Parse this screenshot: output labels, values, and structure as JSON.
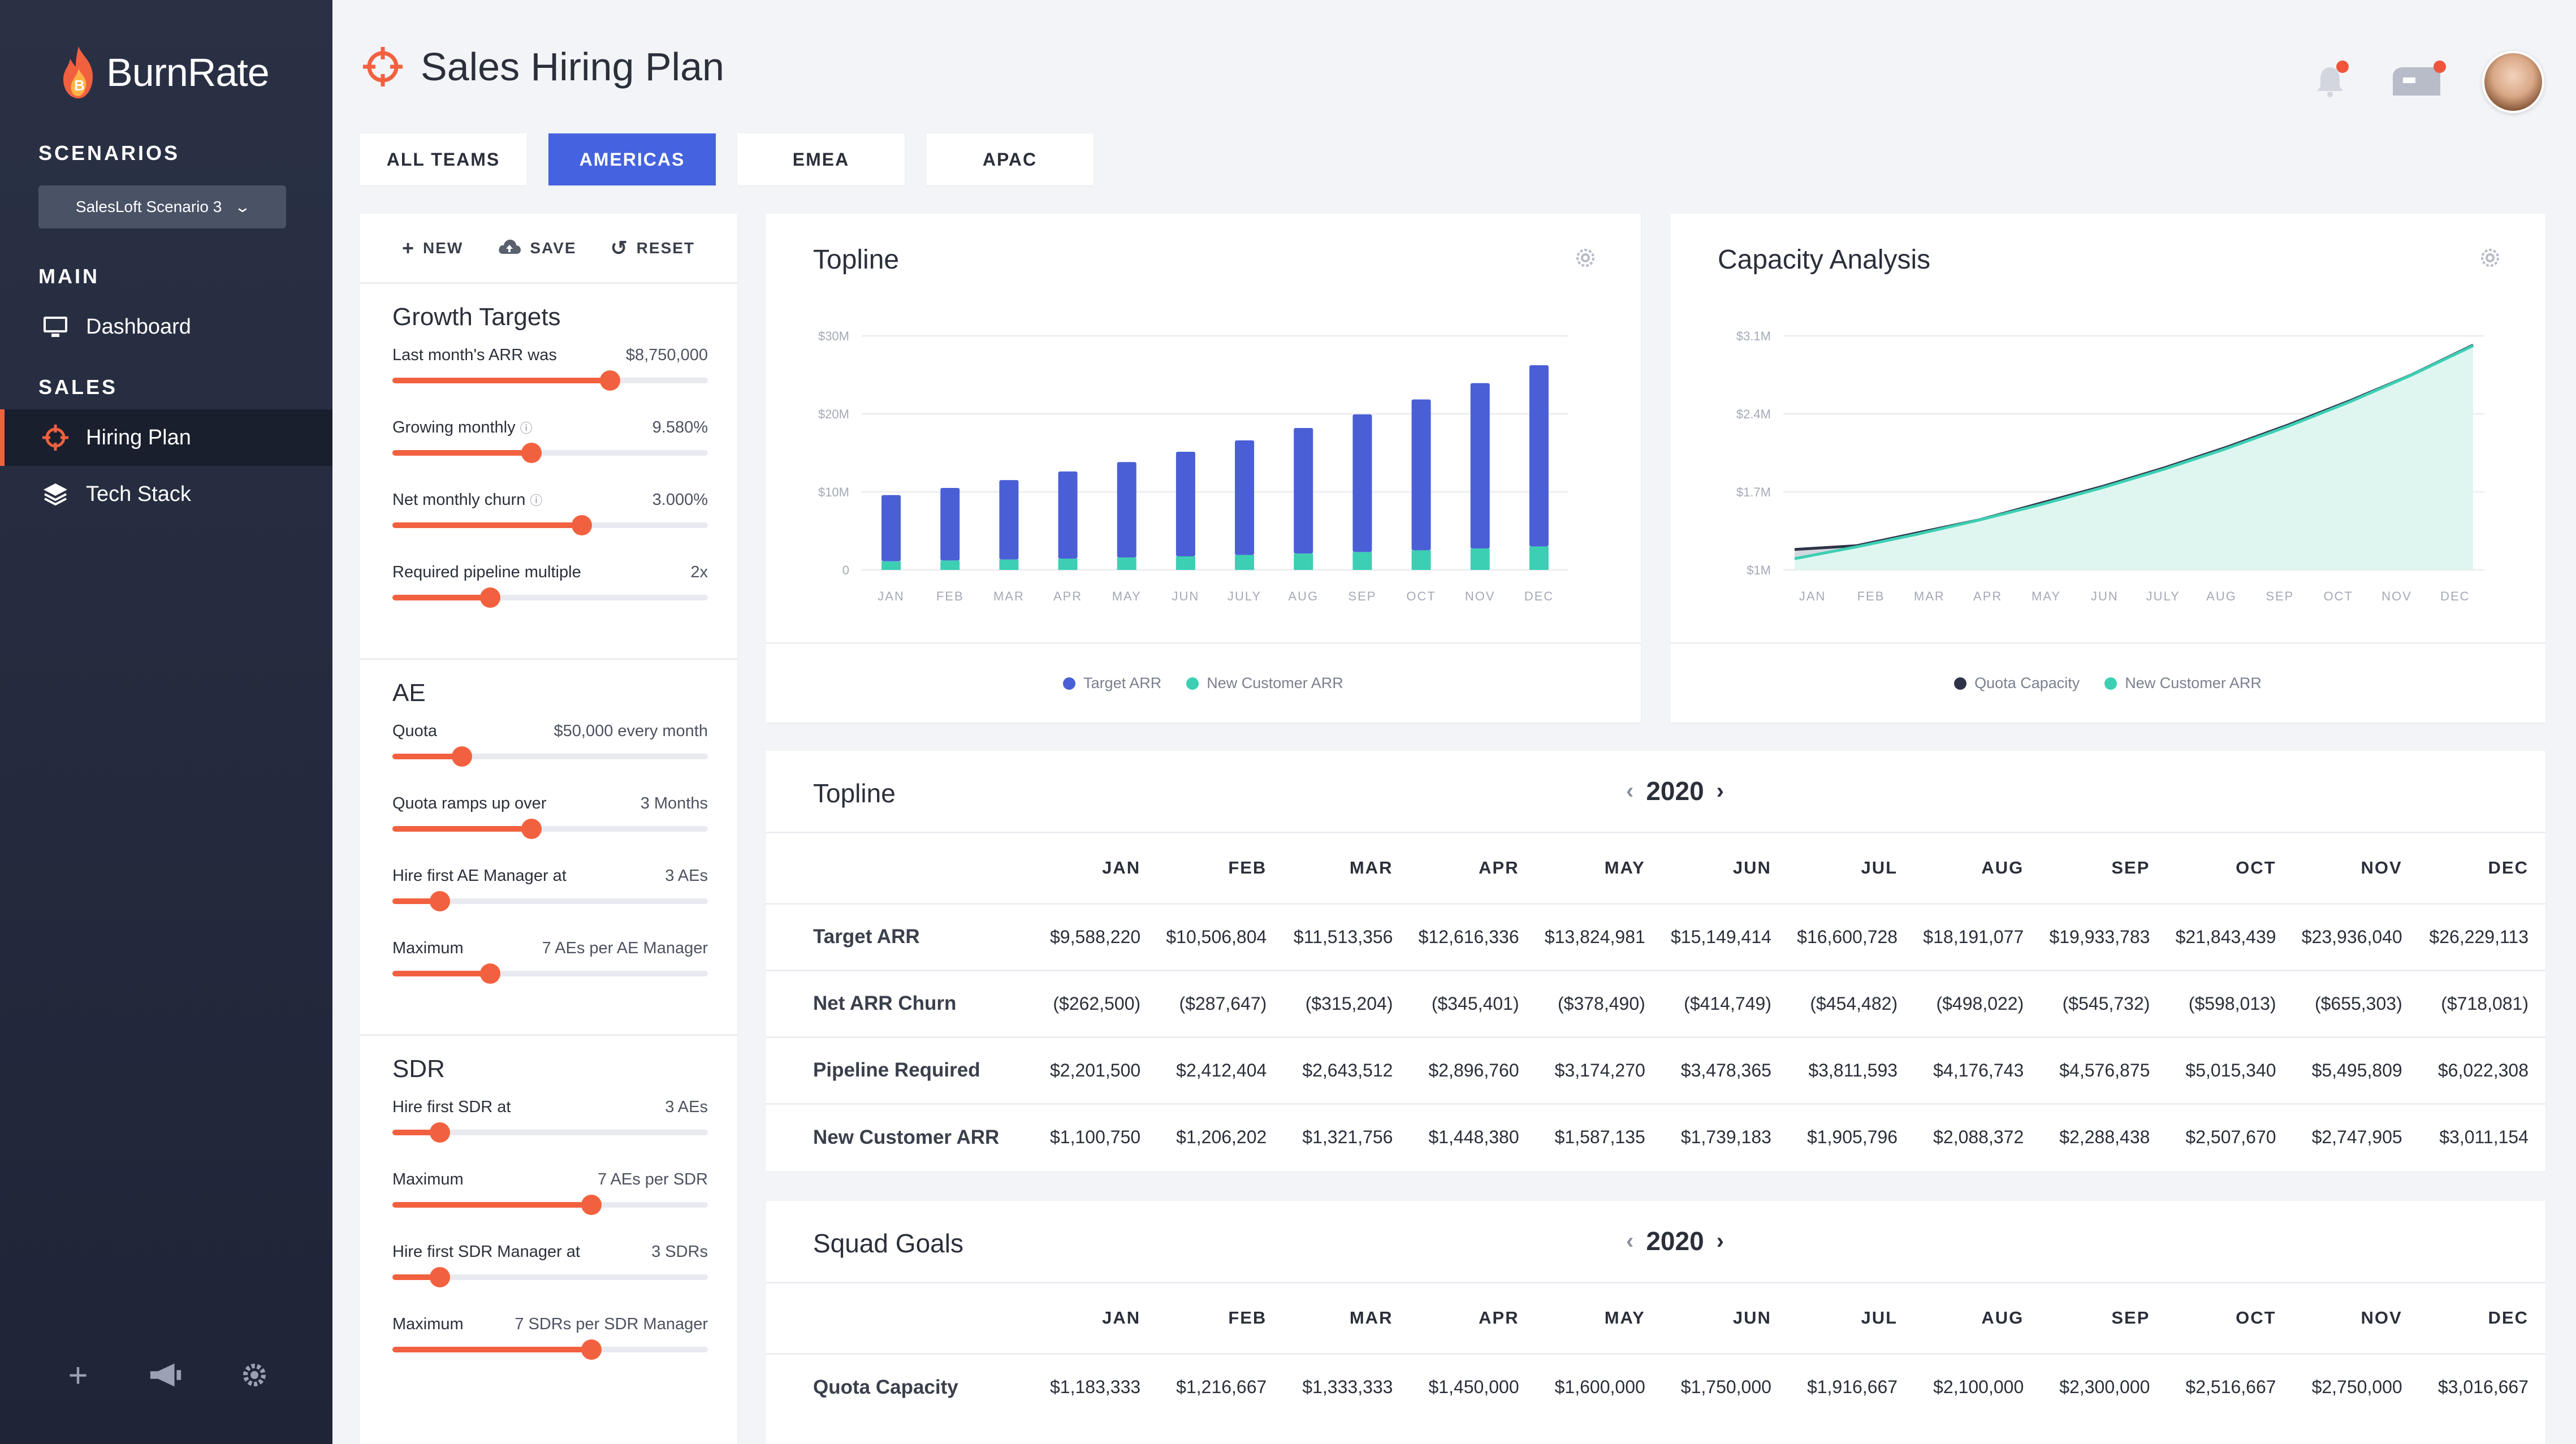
{
  "app": {
    "name": "BurnRate"
  },
  "colors": {
    "accent": "#f2613f",
    "primary": "#4563e0",
    "teal": "#3ccfb3",
    "navy": "#2e3348"
  },
  "sidebar": {
    "scenarios_heading": "SCENARIOS",
    "scenario_selected": "SalesLoft Scenario 3",
    "main_heading": "MAIN",
    "sales_heading": "SALES",
    "items": [
      {
        "label": "Dashboard",
        "icon": "monitor-icon"
      },
      {
        "label": "Hiring Plan",
        "icon": "crosshair-icon",
        "active": true
      },
      {
        "label": "Tech Stack",
        "icon": "layers-icon"
      }
    ],
    "bottom_icons": [
      "plus-icon",
      "megaphone-icon",
      "gear-icon"
    ]
  },
  "header": {
    "title": "Sales Hiring Plan",
    "icons": [
      "bell-icon",
      "mailbox-icon",
      "avatar"
    ]
  },
  "tabs": [
    "ALL TEAMS",
    "AMERICAS",
    "EMEA",
    "APAC"
  ],
  "active_tab": "AMERICAS",
  "actions": {
    "new": "NEW",
    "save": "SAVE",
    "reset": "RESET"
  },
  "growth": {
    "title": "Growth Targets",
    "controls": [
      {
        "label": "Last month's ARR was",
        "value": "$8,750,000",
        "level": 0.69
      },
      {
        "label": "Growing monthly",
        "value": "9.580%",
        "level": 0.44,
        "info": true
      },
      {
        "label": "Net monthly churn",
        "value": "3.000%",
        "level": 0.6,
        "info": true
      },
      {
        "label": "Required pipeline multiple",
        "value": "2x",
        "level": 0.31
      }
    ]
  },
  "ae": {
    "title": "AE",
    "controls": [
      {
        "label": "Quota",
        "value": "$50,000 every month",
        "level": 0.22
      },
      {
        "label": "Quota ramps up over",
        "value": "3 Months",
        "level": 0.44
      },
      {
        "label": "Hire first AE Manager at",
        "value": "3 AEs",
        "level": 0.15
      },
      {
        "label": "Maximum",
        "value": "7 AEs per AE Manager",
        "level": 0.31
      }
    ]
  },
  "sdr": {
    "title": "SDR",
    "controls": [
      {
        "label": "Hire first SDR at",
        "value": "3 AEs",
        "level": 0.15
      },
      {
        "label": "Maximum",
        "value": "7 AEs per SDR",
        "level": 0.63
      },
      {
        "label": "Hire first SDR Manager at",
        "value": "3 SDRs",
        "level": 0.15
      },
      {
        "label": "Maximum",
        "value": "7 SDRs per SDR Manager",
        "level": 0.63
      }
    ]
  },
  "chart_data": [
    {
      "type": "bar",
      "title": "Topline",
      "categories": [
        "JAN",
        "FEB",
        "MAR",
        "APR",
        "MAY",
        "JUN",
        "JULY",
        "AUG",
        "SEP",
        "OCT",
        "NOV",
        "DEC"
      ],
      "y_ticks": [
        "0",
        "$10M",
        "$20M",
        "$30M"
      ],
      "ylim": [
        0,
        30000000
      ],
      "grid": true,
      "legend": "bottom",
      "series": [
        {
          "name": "Target ARR",
          "color": "#4a5fd6",
          "values": [
            9588220,
            10506804,
            11513356,
            12616336,
            13824981,
            15149414,
            16600728,
            18191077,
            19933783,
            21843439,
            23936040,
            26229113
          ]
        },
        {
          "name": "New Customer ARR",
          "color": "#3ccfb3",
          "values": [
            1100750,
            1206202,
            1321756,
            1448380,
            1587135,
            1739183,
            1905796,
            2088372,
            2288438,
            2507670,
            2747905,
            3011154
          ]
        }
      ]
    },
    {
      "type": "area",
      "title": "Capacity Analysis",
      "categories": [
        "JAN",
        "FEB",
        "MAR",
        "APR",
        "MAY",
        "JUN",
        "JULY",
        "AUG",
        "SEP",
        "OCT",
        "NOV",
        "DEC"
      ],
      "y_ticks": [
        "$1M",
        "$1.7M",
        "$2.4M",
        "$3.1M"
      ],
      "ylim": [
        1000000,
        3100000
      ],
      "grid": true,
      "legend": "bottom",
      "series": [
        {
          "name": "Quota Capacity",
          "color": "#2e3348",
          "values": [
            1183333,
            1216667,
            1333333,
            1450000,
            1600000,
            1750000,
            1916667,
            2100000,
            2300000,
            2516667,
            2750000,
            3016667
          ]
        },
        {
          "name": "New Customer ARR",
          "color": "#3ccfb3",
          "values": [
            1100750,
            1206202,
            1321756,
            1448380,
            1587135,
            1739183,
            1905796,
            2088372,
            2288438,
            2507670,
            2747905,
            3011154
          ]
        }
      ]
    }
  ],
  "topline_table": {
    "title": "Topline",
    "year": "2020",
    "columns": [
      "JAN",
      "FEB",
      "MAR",
      "APR",
      "MAY",
      "JUN",
      "JUL",
      "AUG",
      "SEP",
      "OCT",
      "NOV",
      "DEC"
    ],
    "rows": [
      {
        "label": "Target ARR",
        "cells": [
          "$9,588,220",
          "$10,506,804",
          "$11,513,356",
          "$12,616,336",
          "$13,824,981",
          "$15,149,414",
          "$16,600,728",
          "$18,191,077",
          "$19,933,783",
          "$21,843,439",
          "$23,936,040",
          "$26,229,113"
        ]
      },
      {
        "label": "Net ARR Churn",
        "cells": [
          "($262,500)",
          "($287,647)",
          "($315,204)",
          "($345,401)",
          "($378,490)",
          "($414,749)",
          "($454,482)",
          "($498,022)",
          "($545,732)",
          "($598,013)",
          "($655,303)",
          "($718,081)"
        ]
      },
      {
        "label": "Pipeline Required",
        "cells": [
          "$2,201,500",
          "$2,412,404",
          "$2,643,512",
          "$2,896,760",
          "$3,174,270",
          "$3,478,365",
          "$3,811,593",
          "$4,176,743",
          "$4,576,875",
          "$5,015,340",
          "$5,495,809",
          "$6,022,308"
        ]
      },
      {
        "label": "New Customer ARR",
        "cells": [
          "$1,100,750",
          "$1,206,202",
          "$1,321,756",
          "$1,448,380",
          "$1,587,135",
          "$1,739,183",
          "$1,905,796",
          "$2,088,372",
          "$2,288,438",
          "$2,507,670",
          "$2,747,905",
          "$3,011,154"
        ]
      }
    ]
  },
  "squad_table": {
    "title": "Squad Goals",
    "year": "2020",
    "columns": [
      "JAN",
      "FEB",
      "MAR",
      "APR",
      "MAY",
      "JUN",
      "JUL",
      "AUG",
      "SEP",
      "OCT",
      "NOV",
      "DEC"
    ],
    "rows": [
      {
        "label": "Quota Capacity",
        "cells": [
          "$1,183,333",
          "$1,216,667",
          "$1,333,333",
          "$1,450,000",
          "$1,600,000",
          "$1,750,000",
          "$1,916,667",
          "$2,100,000",
          "$2,300,000",
          "$2,516,667",
          "$2,750,000",
          "$3,016,667"
        ]
      }
    ]
  }
}
